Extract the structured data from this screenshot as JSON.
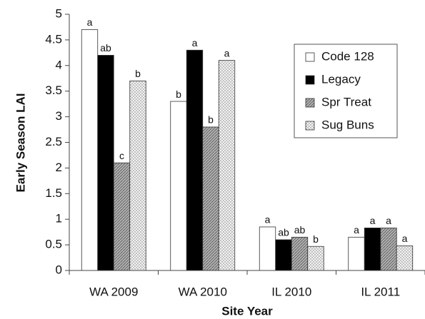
{
  "chart_data": {
    "type": "bar",
    "x_label": "Site Year",
    "y_label": "Early Season LAI",
    "categories": [
      "WA 2009",
      "WA 2010",
      "IL 2010",
      "IL 2011"
    ],
    "series": [
      {
        "name": "Code 128",
        "color": "#ffffff",
        "pattern": "solid",
        "values": [
          4.7,
          3.3,
          0.85,
          0.65
        ],
        "letters": [
          "a",
          "b",
          "a",
          "a"
        ]
      },
      {
        "name": "Legacy",
        "color": "#000000",
        "pattern": "solid",
        "values": [
          4.2,
          4.3,
          0.6,
          0.83
        ],
        "letters": [
          "ab",
          "a",
          "ab",
          "a"
        ]
      },
      {
        "name": "Spr Treat",
        "color": "#a8a8a8",
        "pattern": "hatch",
        "values": [
          2.1,
          2.8,
          0.65,
          0.83
        ],
        "letters": [
          "c",
          "b",
          "ab",
          "a"
        ]
      },
      {
        "name": "Sug Buns",
        "color": "#e2e2e2",
        "pattern": "dots",
        "values": [
          3.7,
          4.1,
          0.47,
          0.48
        ],
        "letters": [
          "b",
          "a",
          "b",
          "a"
        ]
      }
    ],
    "ylim": [
      0,
      5
    ],
    "yticks": [
      0,
      0.5,
      1,
      1.5,
      2,
      2.5,
      3,
      3.5,
      4,
      4.5,
      5
    ],
    "grid": false,
    "legend": "upper right"
  }
}
